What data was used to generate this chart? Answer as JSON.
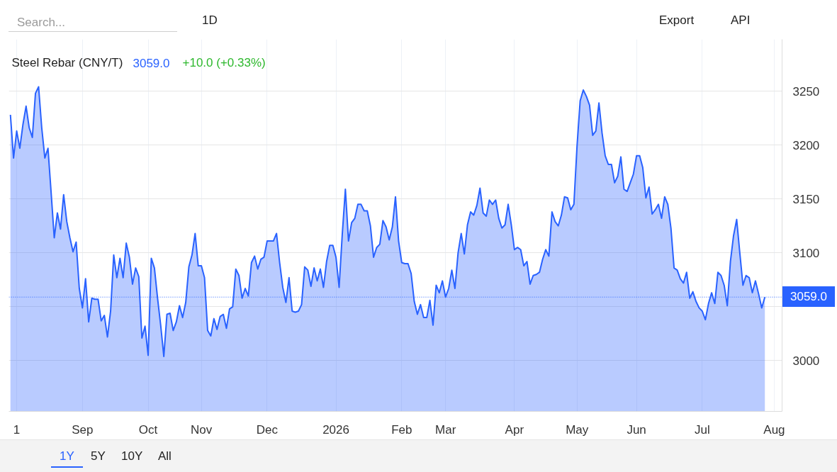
{
  "chart_data": {
    "type": "area",
    "title": "Steel Rebar (CNY/T)",
    "annotations": [
      "3059.0",
      "+10.0 (+0.33%)",
      "Search...",
      "1D",
      "Export",
      "API",
      "1Y",
      "5Y",
      "10Y",
      "All"
    ],
    "color": "#2962ff",
    "categories": [
      null,
      null,
      "1",
      null,
      null,
      null,
      null,
      null,
      null,
      null,
      null,
      null,
      null,
      null,
      null,
      null,
      null,
      null,
      null,
      null,
      null,
      null,
      null,
      "Sep",
      null,
      null,
      null,
      null,
      null,
      null,
      null,
      null,
      null,
      null,
      null,
      null,
      null,
      null,
      null,
      null,
      null,
      null,
      null,
      null,
      "Oct",
      null,
      null,
      null,
      null,
      null,
      null,
      null,
      null,
      null,
      null,
      null,
      null,
      null,
      null,
      null,
      null,
      "Nov",
      null,
      null,
      null,
      null,
      null,
      null,
      null,
      null,
      null,
      null,
      null,
      null,
      null,
      null,
      null,
      null,
      null,
      null,
      null,
      null,
      "Dec",
      null,
      null,
      null,
      null,
      null,
      null,
      null,
      null,
      null,
      null,
      null,
      null,
      null,
      null,
      null,
      null,
      null,
      null,
      null,
      null,
      null,
      "2026",
      null,
      null,
      null,
      null,
      null,
      null,
      null,
      null,
      null,
      null,
      null,
      null,
      null,
      null,
      null,
      null,
      null,
      null,
      null,
      null,
      "Feb",
      null,
      null,
      null,
      null,
      null,
      null,
      null,
      null,
      null,
      null,
      null,
      null,
      null,
      "Mar",
      null,
      null,
      null,
      null,
      null,
      null,
      null,
      null,
      null,
      null,
      null,
      null,
      null,
      null,
      null,
      null,
      null,
      null,
      null,
      null,
      null,
      "Apr",
      null,
      null,
      null,
      null,
      null,
      null,
      null,
      null,
      null,
      null,
      null,
      null,
      null,
      null,
      null,
      null,
      null,
      null,
      null,
      "May",
      null,
      null,
      null,
      null,
      null,
      null,
      null,
      null,
      null,
      null,
      null,
      null,
      null,
      null,
      null,
      null,
      null,
      null,
      "Jun",
      null,
      null,
      null,
      null,
      null,
      null,
      null,
      null,
      null,
      null,
      null,
      null,
      null,
      null,
      null,
      null,
      null,
      null,
      null,
      null,
      "Jul",
      null,
      null,
      null,
      null,
      null,
      null,
      null,
      null,
      null,
      null,
      null,
      null,
      null,
      null,
      null,
      null,
      null,
      null,
      null,
      null,
      null,
      null,
      "Aug"
    ],
    "values": [
      3228,
      3188,
      3213,
      3197,
      3219,
      3236,
      3216,
      3207,
      3248,
      3254,
      3216,
      3188,
      3197,
      3156,
      3114,
      3137,
      3122,
      3154,
      3129,
      3114,
      3101,
      3110,
      3067,
      3049,
      3076,
      3036,
      3058,
      3057,
      3057,
      3037,
      3042,
      3022,
      3046,
      3098,
      3077,
      3095,
      3077,
      3109,
      3096,
      3071,
      3086,
      3078,
      3021,
      3032,
      3005,
      3095,
      3086,
      3058,
      3033,
      3004,
      3043,
      3044,
      3028,
      3036,
      3051,
      3040,
      3054,
      3087,
      3098,
      3118,
      3088,
      3088,
      3077,
      3028,
      3023,
      3039,
      3029,
      3041,
      3043,
      3030,
      3048,
      3050,
      3085,
      3079,
      3058,
      3067,
      3060,
      3091,
      3097,
      3085,
      3094,
      3096,
      3111,
      3111,
      3111,
      3118,
      3091,
      3068,
      3054,
      3077,
      3046,
      3045,
      3046,
      3052,
      3087,
      3084,
      3069,
      3086,
      3074,
      3085,
      3068,
      3092,
      3107,
      3107,
      3096,
      3068,
      3117,
      3159,
      3111,
      3128,
      3132,
      3145,
      3145,
      3139,
      3139,
      3125,
      3096,
      3105,
      3108,
      3130,
      3124,
      3112,
      3124,
      3152,
      3111,
      3091,
      3090,
      3090,
      3081,
      3055,
      3043,
      3052,
      3040,
      3040,
      3056,
      3033,
      3070,
      3063,
      3074,
      3059,
      3067,
      3084,
      3067,
      3100,
      3118,
      3099,
      3126,
      3138,
      3135,
      3144,
      3160,
      3137,
      3134,
      3149,
      3145,
      3149,
      3132,
      3123,
      3126,
      3145,
      3126,
      3103,
      3105,
      3103,
      3088,
      3092,
      3071,
      3079,
      3080,
      3082,
      3094,
      3103,
      3097,
      3138,
      3129,
      3125,
      3135,
      3152,
      3151,
      3140,
      3145,
      3199,
      3241,
      3251,
      3245,
      3237,
      3209,
      3213,
      3239,
      3211,
      3190,
      3182,
      3182,
      3165,
      3171,
      3189,
      3159,
      3157,
      3165,
      3173,
      3190,
      3190,
      3179,
      3151,
      3161,
      3136,
      3140,
      3145,
      3132,
      3152,
      3145,
      3123,
      3086,
      3084,
      3076,
      3072,
      3082,
      3058,
      3064,
      3055,
      3049,
      3046,
      3038,
      3053,
      3063,
      3053,
      3082,
      3079,
      3070,
      3051,
      3092,
      3116,
      3131,
      3100,
      3070,
      3079,
      3077,
      3063,
      3074,
      3062,
      3049,
      3059,
      null,
      null,
      null
    ],
    "ylim": [
      2953,
      3298
    ],
    "yticks": [
      3000,
      {
        "value": 3050,
        "label": null
      },
      3100,
      3150,
      3200,
      3250
    ],
    "ref_lines": [
      {
        "axis": "y",
        "value": 3059,
        "label": "3059.0",
        "color": "#2962ff",
        "line_style": "dotted"
      }
    ],
    "grid": true
  }
}
